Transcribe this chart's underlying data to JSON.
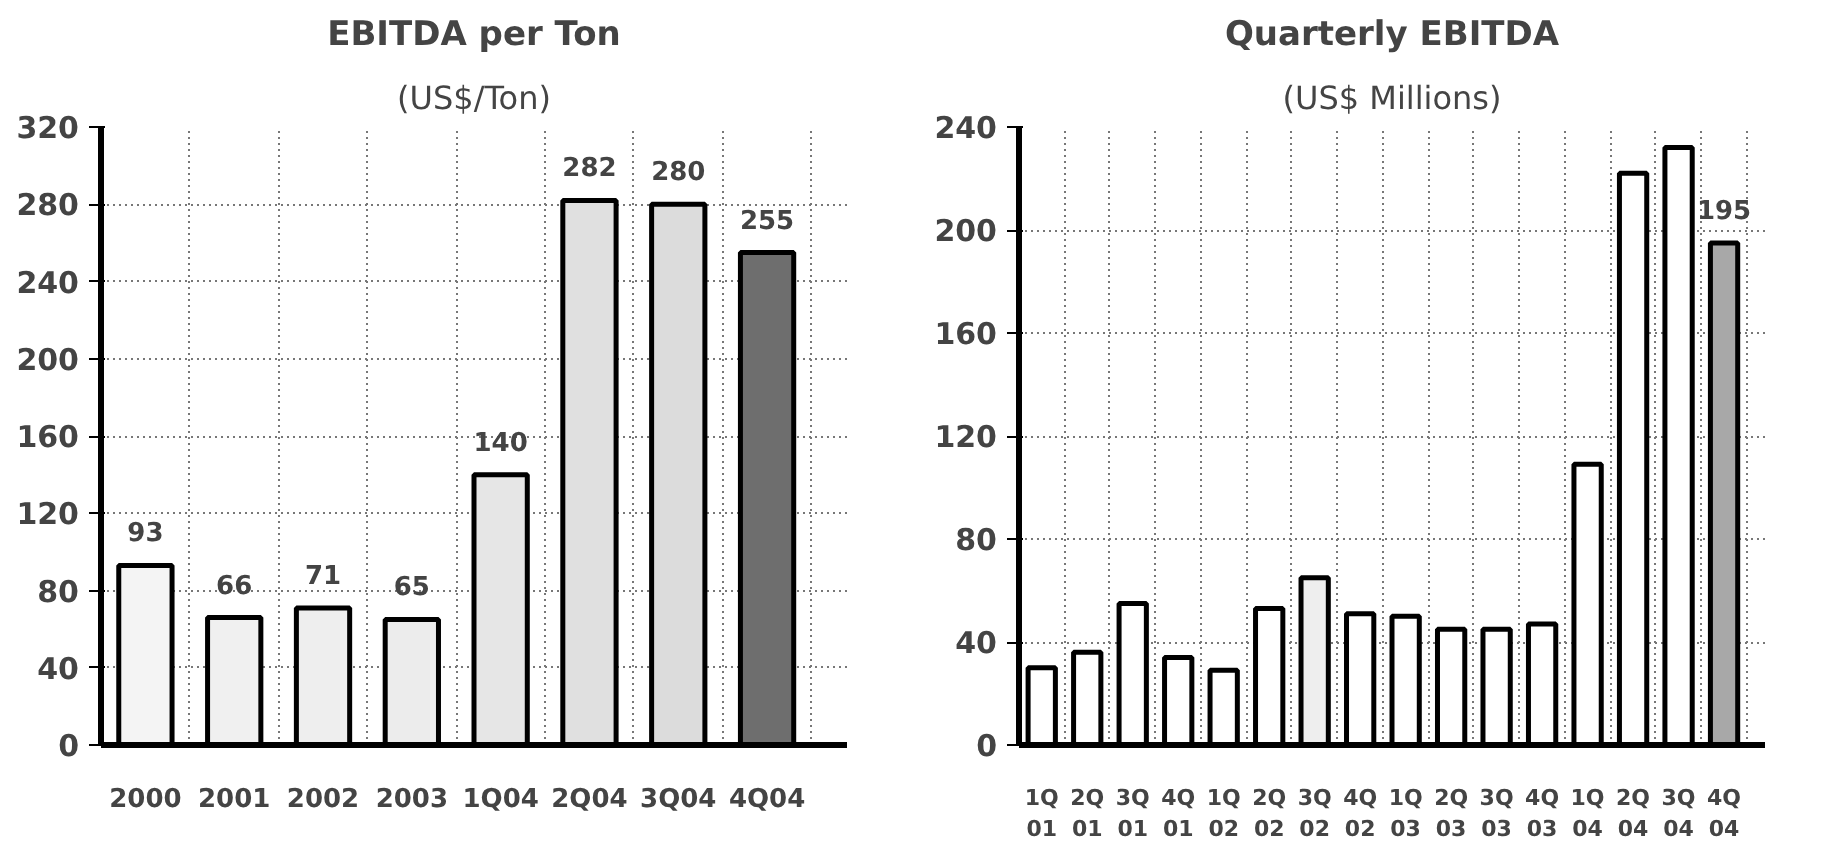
{
  "chart_data": [
    {
      "type": "bar",
      "title": "EBITDA per Ton",
      "subtitle": "(US$/Ton)",
      "categories": [
        "2000",
        "2001",
        "2002",
        "2003",
        "1Q04",
        "2Q04",
        "3Q04",
        "4Q04"
      ],
      "values": [
        93,
        66,
        71,
        65,
        140,
        282,
        280,
        255
      ],
      "colors": [
        "#f4f4f4",
        "#f0f0f0",
        "#eeeeee",
        "#ececec",
        "#e6e6e6",
        "#e0e0e0",
        "#dcdcdc",
        "#6e6e6e"
      ],
      "ylim": [
        0,
        320
      ],
      "yticks": [
        0,
        40,
        80,
        120,
        160,
        200,
        240,
        280,
        320
      ],
      "grid": true,
      "data_labels": true
    },
    {
      "type": "bar",
      "title": "Quarterly EBITDA",
      "subtitle": "(US$ Millions)",
      "categories": [
        "1Q\n01",
        "2Q\n01",
        "3Q\n01",
        "4Q\n01",
        "1Q\n02",
        "2Q\n02",
        "3Q\n02",
        "4Q\n02",
        "1Q\n03",
        "2Q\n03",
        "3Q\n03",
        "4Q\n03",
        "1Q\n04",
        "2Q\n04",
        "3Q\n04",
        "4Q\n04"
      ],
      "values": [
        30,
        36,
        55,
        34,
        29,
        53,
        65,
        51,
        50,
        45,
        45,
        47,
        109,
        222,
        232,
        195
      ],
      "colors": [
        "#ffffff",
        "#ffffff",
        "#ffffff",
        "#ffffff",
        "#ffffff",
        "#ffffff",
        "#eeeeee",
        "#ffffff",
        "#ffffff",
        "#ffffff",
        "#ffffff",
        "#ffffff",
        "#ffffff",
        "#ffffff",
        "#ffffff",
        "#a8a8a8"
      ],
      "value_labels": [
        null,
        null,
        null,
        null,
        null,
        null,
        null,
        null,
        null,
        null,
        null,
        null,
        null,
        null,
        null,
        "195"
      ],
      "ylim": [
        0,
        240
      ],
      "yticks": [
        0,
        40,
        80,
        120,
        160,
        200,
        240
      ],
      "grid": true
    }
  ]
}
